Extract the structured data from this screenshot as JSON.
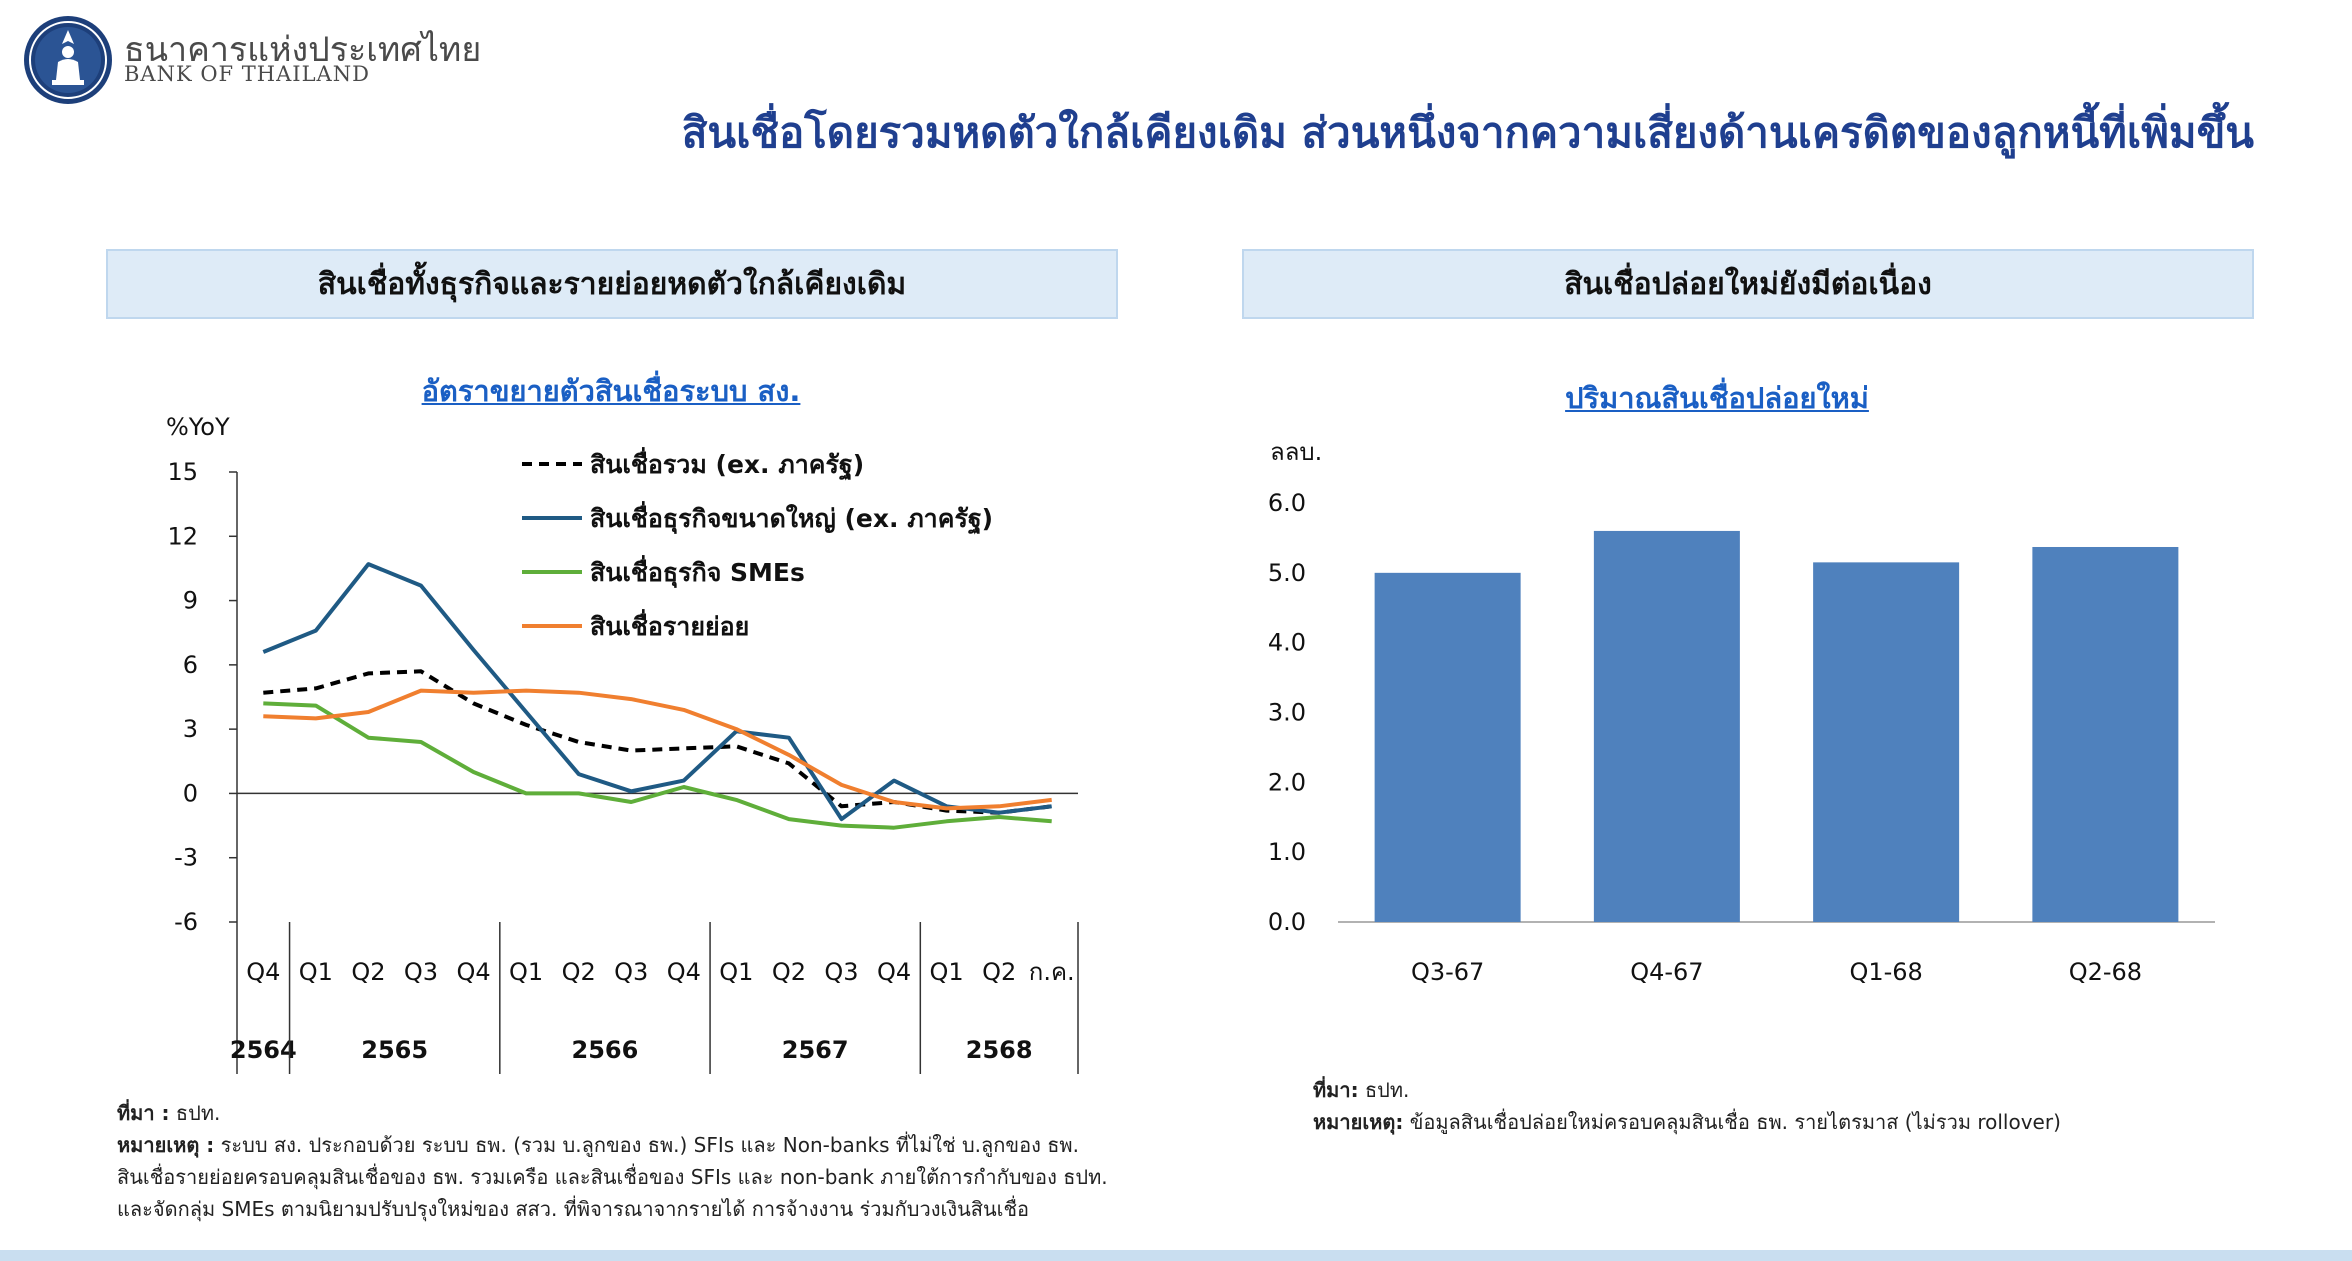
{
  "header": {
    "org_name_th": "ธนาคารแห่งประเทศไทย",
    "org_name_en": "BANK OF THAILAND",
    "main_title": "สินเชื่อโดยรวมหดตัวใกล้เคียงเดิม ส่วนหนึ่งจากความเสี่ยงด้านเครดิตของลูกหนี้ที่เพิ่มขึ้น",
    "brand_color": "#1f3f8f"
  },
  "left_panel": {
    "heading": "สินเชื่อทั้งธุรกิจและรายย่อยหดตัวใกล้เคียงเดิม",
    "notes": {
      "source_label": "ที่มา :",
      "source_text": "ธปท.",
      "remark_label": "หมายเหตุ :",
      "remark_line1": "ระบบ สง. ประกอบด้วย ระบบ ธพ. (รวม บ.ลูกของ ธพ.) SFIs และ Non-banks ที่ไม่ใช่ บ.ลูกของ ธพ.",
      "remark_line2": "สินเชื่อรายย่อยครอบคลุมสินเชื่อของ ธพ. รวมเครือ และสินเชื่อของ SFIs และ non-bank ภายใต้การกำกับของ ธปท.",
      "remark_line3": "และจัดกลุ่ม SMEs ตามนิยามปรับปรุงใหม่ของ สสว. ที่พิจารณาจากรายได้ การจ้างงาน ร่วมกับวงเงินสินเชื่อ"
    }
  },
  "right_panel": {
    "heading": "สินเชื่อปล่อยใหม่ยังมีต่อเนื่อง",
    "notes": {
      "source_label": "ที่มา:",
      "source_text": "ธปท.",
      "remark_label": "หมายเหตุ:",
      "remark_text": "ข้อมูลสินเชื่อปล่อยใหม่ครอบคลุมสินเชื่อ ธพ. รายไตรมาส (ไม่รวม rollover)"
    }
  },
  "chart_data": [
    {
      "type": "line",
      "title": "อัตราขยายตัวสินเชื่อระบบ สง.",
      "ylabel": "%YoY",
      "xlabel": "",
      "ylim": [
        -6,
        15
      ],
      "yticks": [
        15,
        12,
        9,
        6,
        3,
        0,
        -3,
        -6
      ],
      "x": [
        "Q4",
        "Q1",
        "Q2",
        "Q3",
        "Q4",
        "Q1",
        "Q2",
        "Q3",
        "Q4",
        "Q1",
        "Q2",
        "Q3",
        "Q4",
        "Q1",
        "Q2",
        "ก.ค."
      ],
      "year_groups": [
        {
          "label": "2564",
          "count": 1
        },
        {
          "label": "2565",
          "count": 4
        },
        {
          "label": "2566",
          "count": 4
        },
        {
          "label": "2567",
          "count": 4
        },
        {
          "label": "2568",
          "count": 3
        }
      ],
      "legend_position": "top-right",
      "grid": false,
      "series": [
        {
          "name": "สินเชื่อรวม (ex. ภาครัฐ)",
          "color": "#000000",
          "dash": true,
          "values": [
            4.7,
            4.9,
            5.6,
            5.7,
            4.2,
            3.2,
            2.4,
            2.0,
            2.1,
            2.2,
            1.4,
            -0.6,
            -0.4,
            -0.8,
            -0.9,
            -0.6
          ]
        },
        {
          "name": "สินเชื่อธุรกิจขนาดใหญ่ (ex. ภาครัฐ)",
          "color": "#1f5a84",
          "dash": false,
          "values": [
            6.6,
            7.6,
            10.7,
            9.7,
            6.7,
            3.8,
            0.9,
            0.1,
            0.6,
            2.9,
            2.6,
            -1.2,
            0.6,
            -0.6,
            -0.9,
            -0.6
          ]
        },
        {
          "name": "สินเชื่อธุรกิจ SMEs",
          "color": "#5fae3a",
          "dash": false,
          "values": [
            4.2,
            4.1,
            2.6,
            2.4,
            1.0,
            0.0,
            0.0,
            -0.4,
            0.3,
            -0.3,
            -1.2,
            -1.5,
            -1.6,
            -1.3,
            -1.1,
            -1.3
          ]
        },
        {
          "name": "สินเชื่อรายย่อย",
          "color": "#f07f2f",
          "dash": false,
          "values": [
            3.6,
            3.5,
            3.8,
            4.8,
            4.7,
            4.8,
            4.7,
            4.4,
            3.9,
            3.0,
            1.8,
            0.4,
            -0.4,
            -0.7,
            -0.6,
            -0.3
          ]
        }
      ]
    },
    {
      "type": "bar",
      "title": "ปริมาณสินเชื่อปล่อยใหม่",
      "ylabel": "ลลบ.",
      "xlabel": "",
      "ylim": [
        0,
        6
      ],
      "yticks": [
        "6.0",
        "5.0",
        "4.0",
        "3.0",
        "2.0",
        "1.0",
        "0.0"
      ],
      "categories": [
        "Q3-67",
        "Q4-67",
        "Q1-68",
        "Q2-68"
      ],
      "values": [
        5.0,
        5.6,
        5.15,
        5.37
      ],
      "bar_color": "#4f81bd",
      "grid": false
    }
  ]
}
